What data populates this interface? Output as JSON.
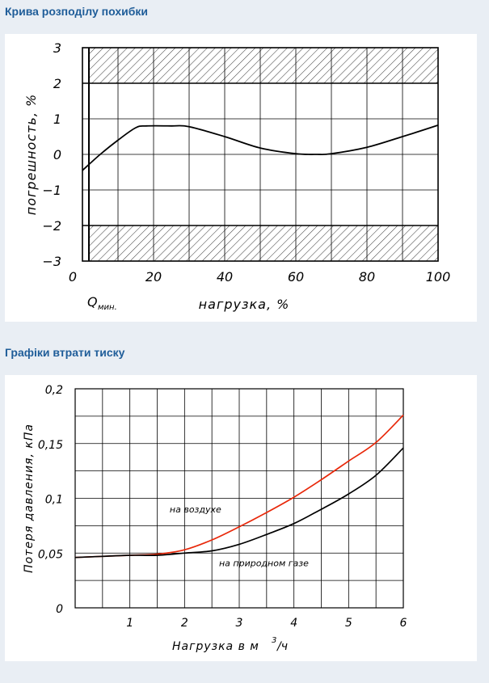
{
  "sections": {
    "deflection_title": "Крива розподілу похибки",
    "pressure_title": "Графіки втрати тиску"
  },
  "colors": {
    "title": "#1f5d99",
    "grid": "#000000",
    "air_curve": "#e8280a",
    "gas_curve": "#000000",
    "background": "#e9eef4",
    "panel": "#ffffff"
  },
  "chart_data": [
    {
      "type": "line",
      "title": "",
      "xlabel": "нагрузка, %",
      "ylabel": "погрешность, %",
      "x_ticks": [
        "0",
        "20",
        "40",
        "60",
        "80",
        "100"
      ],
      "y_ticks": [
        "3",
        "2",
        "1",
        "0",
        "−1",
        "−2",
        "−3"
      ],
      "xlim": [
        0,
        100
      ],
      "ylim": [
        -3,
        3
      ],
      "grid": true,
      "q_min_label": "Q",
      "q_min_sub": "мин.",
      "hatched_zones": [
        [
          2,
          3
        ],
        [
          -3,
          -2
        ]
      ],
      "series": [
        {
          "x": [
            0,
            5,
            10,
            15,
            18,
            25,
            30,
            40,
            50,
            60,
            66,
            70,
            80,
            90,
            100
          ],
          "y": [
            -0.45,
            0.0,
            0.4,
            0.75,
            0.8,
            0.8,
            0.78,
            0.5,
            0.18,
            0.02,
            0.0,
            0.02,
            0.2,
            0.5,
            0.82
          ]
        }
      ]
    },
    {
      "type": "line",
      "title": "",
      "xlabel": "Нагрузка в м³/ч",
      "xlabel_main": "Нагрузка в м",
      "xlabel_sup": "3",
      "xlabel_tail": "/ч",
      "ylabel": "Потеря давления, кПа",
      "x_ticks": [
        "1",
        "2",
        "3",
        "4",
        "5",
        "6"
      ],
      "y_ticks": [
        "0,2",
        "0,15",
        "0,1",
        "0,05",
        "0"
      ],
      "xlim": [
        0,
        6
      ],
      "ylim": [
        0,
        0.2
      ],
      "grid": true,
      "series": [
        {
          "name": "на воздухе",
          "x": [
            0,
            0.5,
            1,
            1.5,
            2,
            2.5,
            3,
            3.5,
            4,
            4.5,
            5,
            5.5,
            6
          ],
          "y": [
            0.046,
            0.047,
            0.048,
            0.049,
            0.053,
            0.062,
            0.074,
            0.087,
            0.101,
            0.117,
            0.134,
            0.151,
            0.176
          ]
        },
        {
          "name": "на природном газе",
          "x": [
            0,
            0.5,
            1,
            1.5,
            2,
            2.5,
            3,
            3.5,
            4,
            4.5,
            5,
            5.5,
            6
          ],
          "y": [
            0.046,
            0.047,
            0.048,
            0.048,
            0.05,
            0.052,
            0.058,
            0.067,
            0.077,
            0.09,
            0.104,
            0.121,
            0.146
          ]
        }
      ]
    }
  ]
}
